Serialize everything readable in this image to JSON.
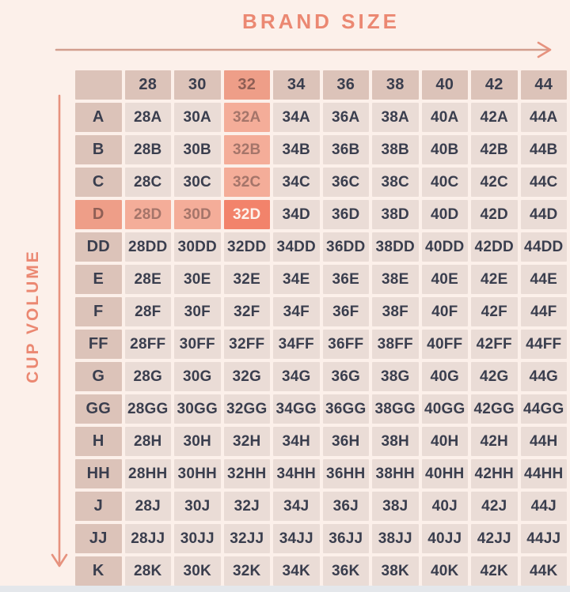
{
  "axes": {
    "brand_size_label": "BRAND SIZE",
    "cup_volume_label": "CUP VOLUME"
  },
  "chart_data": {
    "type": "table",
    "title": "BRAND SIZE",
    "col_axis_label": "BRAND SIZE",
    "row_axis_label": "CUP VOLUME",
    "columns": [
      "28",
      "30",
      "32",
      "34",
      "36",
      "38",
      "40",
      "42",
      "44"
    ],
    "rows": [
      "A",
      "B",
      "C",
      "D",
      "DD",
      "E",
      "F",
      "FF",
      "G",
      "GG",
      "H",
      "HH",
      "J",
      "JJ",
      "K"
    ],
    "cells": [
      [
        "28A",
        "30A",
        "32A",
        "34A",
        "36A",
        "38A",
        "40A",
        "42A",
        "44A"
      ],
      [
        "28B",
        "30B",
        "32B",
        "34B",
        "36B",
        "38B",
        "40B",
        "42B",
        "44B"
      ],
      [
        "28C",
        "30C",
        "32C",
        "34C",
        "36C",
        "38C",
        "40C",
        "42C",
        "44C"
      ],
      [
        "28D",
        "30D",
        "32D",
        "34D",
        "36D",
        "38D",
        "40D",
        "42D",
        "44D"
      ],
      [
        "28DD",
        "30DD",
        "32DD",
        "34DD",
        "36DD",
        "38DD",
        "40DD",
        "42DD",
        "44DD"
      ],
      [
        "28E",
        "30E",
        "32E",
        "34E",
        "36E",
        "38E",
        "40E",
        "42E",
        "44E"
      ],
      [
        "28F",
        "30F",
        "32F",
        "34F",
        "36F",
        "38F",
        "40F",
        "42F",
        "44F"
      ],
      [
        "28FF",
        "30FF",
        "32FF",
        "34FF",
        "36FF",
        "38FF",
        "40FF",
        "42FF",
        "44FF"
      ],
      [
        "28G",
        "30G",
        "32G",
        "34G",
        "36G",
        "38G",
        "40G",
        "42G",
        "44G"
      ],
      [
        "28GG",
        "30GG",
        "32GG",
        "34GG",
        "36GG",
        "38GG",
        "40GG",
        "42GG",
        "44GG"
      ],
      [
        "28H",
        "30H",
        "32H",
        "34H",
        "36H",
        "38H",
        "40H",
        "42H",
        "44H"
      ],
      [
        "28HH",
        "30HH",
        "32HH",
        "34HH",
        "36HH",
        "38HH",
        "40HH",
        "42HH",
        "44HH"
      ],
      [
        "28J",
        "30J",
        "32J",
        "34J",
        "36J",
        "38J",
        "40J",
        "42J",
        "44J"
      ],
      [
        "28JJ",
        "30JJ",
        "32JJ",
        "34JJ",
        "36JJ",
        "38JJ",
        "40JJ",
        "42JJ",
        "44JJ"
      ],
      [
        "28K",
        "30K",
        "32K",
        "34K",
        "36K",
        "38K",
        "40K",
        "42K",
        "44K"
      ]
    ],
    "highlight": {
      "column": "32",
      "row": "D",
      "selected_cell": "32D"
    },
    "legend_position": "none",
    "grid": true
  },
  "colors": {
    "background": "#fcf0ea",
    "cell": "#eadcd6",
    "header_cell": "#dcc3b9",
    "highlight_light": "#f4ad99",
    "highlight_medium": "#ee9e88",
    "highlight_strong": "#f2836b",
    "text_dark": "#3a3e4e",
    "text_highlight": "#a5756a",
    "text_highlight_header": "#8f5f55",
    "text_on_strong": "#fdf3ed",
    "accent_coral": "#eb8872",
    "arrow_horizontal": "#d29e8e",
    "arrow_vertical": "#e6927e"
  }
}
